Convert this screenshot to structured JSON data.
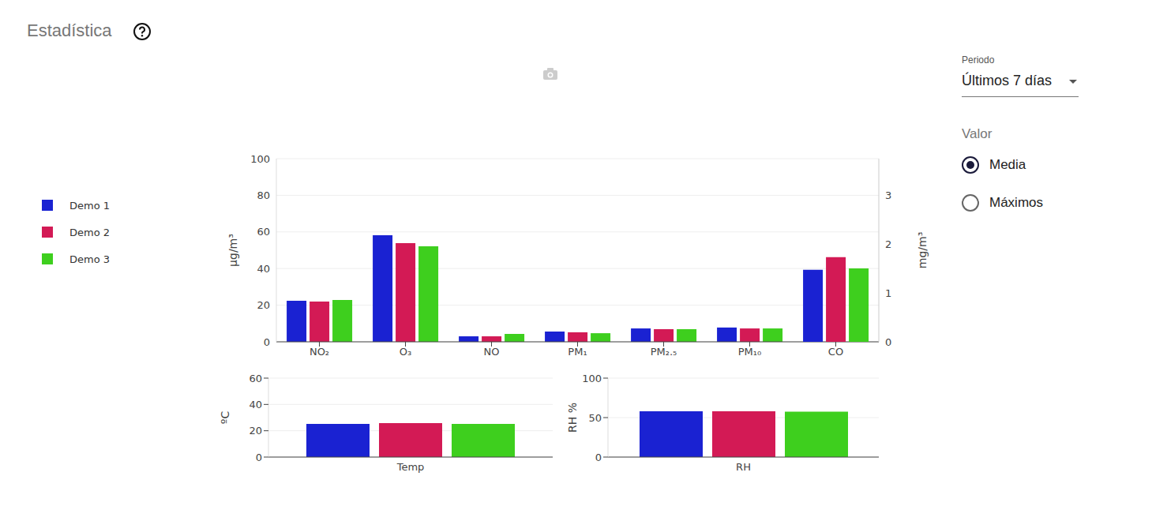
{
  "title": "Estadística",
  "controls": {
    "period": {
      "label": "Periodo",
      "value": "Últimos 7 días"
    },
    "value": {
      "label": "Valor",
      "options": [
        "Media",
        "Máximos"
      ],
      "selected": "Media"
    }
  },
  "chart_data": [
    {
      "type": "bar",
      "categories": [
        "NO₂",
        "O₃",
        "NO",
        "PM₁",
        "PM₂.₅",
        "PM₁₀",
        "CO"
      ],
      "y_label": "µg/m³",
      "y2_label": "mg/m³",
      "ylim": [
        0,
        100
      ],
      "yticks": [
        0,
        20,
        40,
        60,
        80,
        100
      ],
      "y2lim": [
        0,
        3.74
      ],
      "y2ticks": [
        0,
        1,
        2,
        3
      ],
      "grid": true,
      "legend": "left",
      "series": [
        {
          "name": "Demo 1",
          "color": "#1a22d2",
          "values": [
            22.4,
            58.2,
            3,
            5.6,
            7.3,
            7.8,
            null
          ]
        },
        {
          "name": "Demo 2",
          "color": "#d31a55",
          "values": [
            22,
            53.9,
            3,
            5.2,
            6.9,
            7.3,
            null
          ]
        },
        {
          "name": "Demo 3",
          "color": "#3ecf1e",
          "values": [
            22.8,
            52.2,
            4.3,
            4.7,
            6.9,
            7.3,
            null
          ]
        },
        {
          "name": "Demo 1",
          "color": "#1a22d2",
          "axis": "y2",
          "values": [
            null,
            null,
            null,
            null,
            null,
            null,
            1.47
          ]
        },
        {
          "name": "Demo 2",
          "color": "#d31a55",
          "axis": "y2",
          "values": [
            null,
            null,
            null,
            null,
            null,
            null,
            1.73
          ]
        },
        {
          "name": "Demo 3",
          "color": "#3ecf1e",
          "axis": "y2",
          "values": [
            null,
            null,
            null,
            null,
            null,
            null,
            1.5
          ]
        }
      ]
    },
    {
      "type": "bar",
      "categories": [
        "Temp"
      ],
      "y_label": "ºC",
      "ylim": [
        0,
        60
      ],
      "yticks": [
        0,
        20,
        40,
        60
      ],
      "grid": true,
      "series": [
        {
          "name": "Demo 1",
          "color": "#1a22d2",
          "values": [
            25.2
          ]
        },
        {
          "name": "Demo 2",
          "color": "#d31a55",
          "values": [
            25.8
          ]
        },
        {
          "name": "Demo 3",
          "color": "#3ecf1e",
          "values": [
            25.2
          ]
        }
      ]
    },
    {
      "type": "bar",
      "categories": [
        "RH"
      ],
      "y_label": "RH %",
      "ylim": [
        0,
        100
      ],
      "yticks": [
        0,
        50,
        100
      ],
      "grid": true,
      "series": [
        {
          "name": "Demo 1",
          "color": "#1a22d2",
          "values": [
            58
          ]
        },
        {
          "name": "Demo 2",
          "color": "#d31a55",
          "values": [
            58
          ]
        },
        {
          "name": "Demo 3",
          "color": "#3ecf1e",
          "values": [
            57.5
          ]
        }
      ]
    }
  ]
}
